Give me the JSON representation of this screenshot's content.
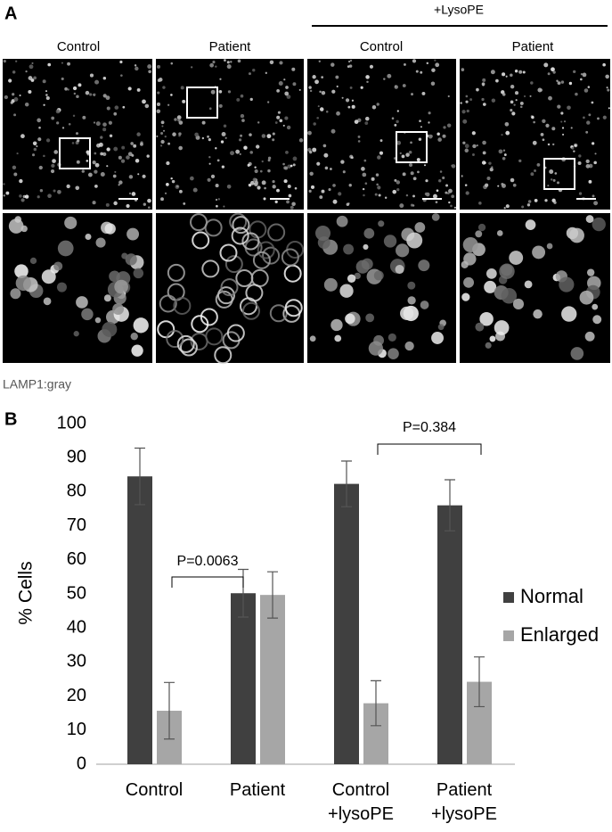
{
  "panel_a": {
    "label": "A",
    "treatment": "+LysoPE",
    "columns": [
      "Control",
      "Patient",
      "Control",
      "Patient"
    ],
    "caption": "LAMP1:gray"
  },
  "panel_b": {
    "label": "B"
  },
  "chart_data": {
    "type": "bar",
    "ylabel": "% Cells",
    "categories": [
      "Control",
      "Patient",
      "Control\n+lysoPE",
      "Patient\n+lysoPE"
    ],
    "series": [
      {
        "name": "Normal",
        "color": "#404040",
        "values": [
          84.5,
          50.2,
          82.3,
          76
        ],
        "errors": [
          8.3,
          7,
          6.7,
          7.5
        ]
      },
      {
        "name": "Enlarged",
        "color": "#a6a6a6",
        "values": [
          15.7,
          49.7,
          17.9,
          24.2
        ],
        "errors": [
          8.3,
          6.8,
          6.6,
          7.3
        ]
      }
    ],
    "ylim": [
      0,
      100
    ],
    "yticks": [
      0,
      10,
      20,
      30,
      40,
      50,
      60,
      70,
      80,
      90,
      100
    ],
    "annotations": [
      "P=0.0063",
      "P=0.384"
    ],
    "legend": "right"
  }
}
